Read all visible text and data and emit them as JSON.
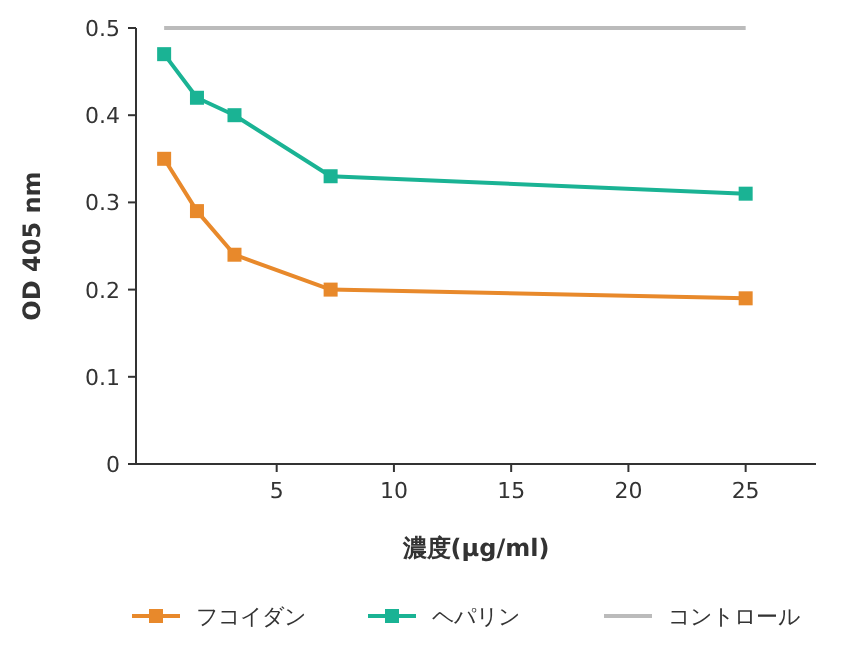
{
  "chart_data": {
    "type": "line",
    "xlabel": "濃度(μg/ml)",
    "ylabel": "OD 405 nm",
    "xlim": [
      -1,
      28
    ],
    "ylim": [
      0,
      0.5
    ],
    "xticks": [
      5,
      10,
      15,
      20,
      25
    ],
    "yticks": [
      0,
      0.1,
      0.2,
      0.3,
      0.4,
      0.5
    ],
    "legend": "bottom",
    "grid": false,
    "line_style": "solid",
    "series": [
      {
        "name": "フコイダン",
        "color": "#e8892b",
        "marker": "square",
        "x": [
          0.2,
          1.6,
          3.2,
          7.3,
          25
        ],
        "values": [
          0.35,
          0.29,
          0.24,
          0.2,
          0.19
        ]
      },
      {
        "name": "ヘパリン",
        "color": "#1ab394",
        "marker": "square",
        "x": [
          0.2,
          1.6,
          3.2,
          7.3,
          25
        ],
        "values": [
          0.47,
          0.42,
          0.4,
          0.33,
          0.31
        ]
      },
      {
        "name": "コントロール",
        "color": "#bbbbbb",
        "marker": "none",
        "x": [
          0.2,
          25
        ],
        "values": [
          0.5,
          0.5
        ]
      }
    ]
  }
}
